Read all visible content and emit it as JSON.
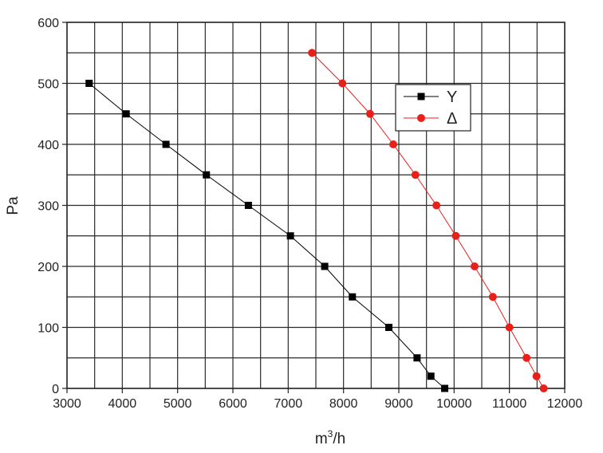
{
  "chart_data": {
    "type": "line",
    "title": "",
    "xlabel": "m",
    "xlabel_sup": "3",
    "xlabel_suffix": "/h",
    "ylabel": "Pa",
    "xlim": [
      3000,
      12000
    ],
    "ylim": [
      0,
      600
    ],
    "x_ticks": [
      3000,
      4000,
      5000,
      6000,
      7000,
      8000,
      9000,
      10000,
      11000,
      12000
    ],
    "y_ticks": [
      0,
      100,
      200,
      300,
      400,
      500,
      600
    ],
    "x_minor_step": 500,
    "y_minor_step": 50,
    "grid": true,
    "legend_position": "top-right",
    "series": [
      {
        "name": "Y",
        "color": "#000000",
        "marker": "square",
        "x": [
          3400,
          4070,
          4790,
          5520,
          6280,
          7040,
          7660,
          8160,
          8820,
          9330,
          9580,
          9830
        ],
        "y": [
          500,
          450,
          400,
          350,
          300,
          250,
          200,
          150,
          100,
          50,
          20,
          0
        ]
      },
      {
        "name": "Δ",
        "color": "#e8201a",
        "marker": "circle",
        "x": [
          7430,
          7980,
          8480,
          8900,
          9300,
          9680,
          10030,
          10370,
          10700,
          11000,
          11310,
          11490,
          11620
        ],
        "y": [
          550,
          500,
          450,
          400,
          350,
          300,
          250,
          200,
          150,
          100,
          50,
          20,
          0
        ]
      }
    ]
  }
}
